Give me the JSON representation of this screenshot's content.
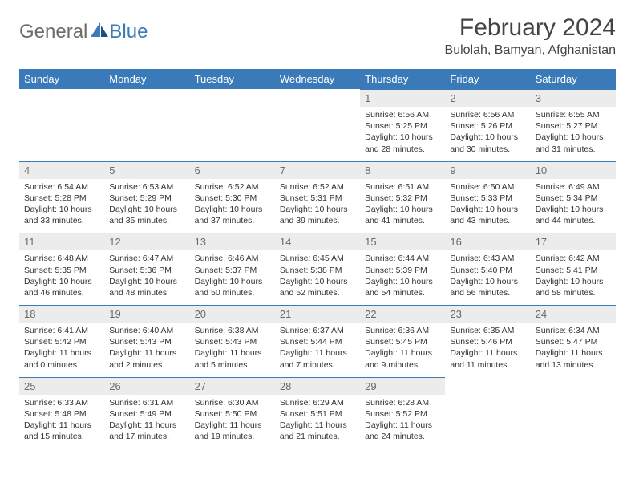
{
  "logo": {
    "textGray": "General",
    "textBlue": "Blue"
  },
  "title": "February 2024",
  "location": "Bulolah, Bamyan, Afghanistan",
  "colors": {
    "headerBar": "#3a7ab8",
    "dayNumBg": "#ececec",
    "logoGray": "#6b6b6b",
    "logoBlue": "#3a7ab8"
  },
  "weekdays": [
    "Sunday",
    "Monday",
    "Tuesday",
    "Wednesday",
    "Thursday",
    "Friday",
    "Saturday"
  ],
  "weeks": [
    [
      null,
      null,
      null,
      null,
      {
        "n": "1",
        "sr": "6:56 AM",
        "ss": "5:25 PM",
        "dl": "10 hours and 28 minutes."
      },
      {
        "n": "2",
        "sr": "6:56 AM",
        "ss": "5:26 PM",
        "dl": "10 hours and 30 minutes."
      },
      {
        "n": "3",
        "sr": "6:55 AM",
        "ss": "5:27 PM",
        "dl": "10 hours and 31 minutes."
      }
    ],
    [
      {
        "n": "4",
        "sr": "6:54 AM",
        "ss": "5:28 PM",
        "dl": "10 hours and 33 minutes."
      },
      {
        "n": "5",
        "sr": "6:53 AM",
        "ss": "5:29 PM",
        "dl": "10 hours and 35 minutes."
      },
      {
        "n": "6",
        "sr": "6:52 AM",
        "ss": "5:30 PM",
        "dl": "10 hours and 37 minutes."
      },
      {
        "n": "7",
        "sr": "6:52 AM",
        "ss": "5:31 PM",
        "dl": "10 hours and 39 minutes."
      },
      {
        "n": "8",
        "sr": "6:51 AM",
        "ss": "5:32 PM",
        "dl": "10 hours and 41 minutes."
      },
      {
        "n": "9",
        "sr": "6:50 AM",
        "ss": "5:33 PM",
        "dl": "10 hours and 43 minutes."
      },
      {
        "n": "10",
        "sr": "6:49 AM",
        "ss": "5:34 PM",
        "dl": "10 hours and 44 minutes."
      }
    ],
    [
      {
        "n": "11",
        "sr": "6:48 AM",
        "ss": "5:35 PM",
        "dl": "10 hours and 46 minutes."
      },
      {
        "n": "12",
        "sr": "6:47 AM",
        "ss": "5:36 PM",
        "dl": "10 hours and 48 minutes."
      },
      {
        "n": "13",
        "sr": "6:46 AM",
        "ss": "5:37 PM",
        "dl": "10 hours and 50 minutes."
      },
      {
        "n": "14",
        "sr": "6:45 AM",
        "ss": "5:38 PM",
        "dl": "10 hours and 52 minutes."
      },
      {
        "n": "15",
        "sr": "6:44 AM",
        "ss": "5:39 PM",
        "dl": "10 hours and 54 minutes."
      },
      {
        "n": "16",
        "sr": "6:43 AM",
        "ss": "5:40 PM",
        "dl": "10 hours and 56 minutes."
      },
      {
        "n": "17",
        "sr": "6:42 AM",
        "ss": "5:41 PM",
        "dl": "10 hours and 58 minutes."
      }
    ],
    [
      {
        "n": "18",
        "sr": "6:41 AM",
        "ss": "5:42 PM",
        "dl": "11 hours and 0 minutes."
      },
      {
        "n": "19",
        "sr": "6:40 AM",
        "ss": "5:43 PM",
        "dl": "11 hours and 2 minutes."
      },
      {
        "n": "20",
        "sr": "6:38 AM",
        "ss": "5:43 PM",
        "dl": "11 hours and 5 minutes."
      },
      {
        "n": "21",
        "sr": "6:37 AM",
        "ss": "5:44 PM",
        "dl": "11 hours and 7 minutes."
      },
      {
        "n": "22",
        "sr": "6:36 AM",
        "ss": "5:45 PM",
        "dl": "11 hours and 9 minutes."
      },
      {
        "n": "23",
        "sr": "6:35 AM",
        "ss": "5:46 PM",
        "dl": "11 hours and 11 minutes."
      },
      {
        "n": "24",
        "sr": "6:34 AM",
        "ss": "5:47 PM",
        "dl": "11 hours and 13 minutes."
      }
    ],
    [
      {
        "n": "25",
        "sr": "6:33 AM",
        "ss": "5:48 PM",
        "dl": "11 hours and 15 minutes."
      },
      {
        "n": "26",
        "sr": "6:31 AM",
        "ss": "5:49 PM",
        "dl": "11 hours and 17 minutes."
      },
      {
        "n": "27",
        "sr": "6:30 AM",
        "ss": "5:50 PM",
        "dl": "11 hours and 19 minutes."
      },
      {
        "n": "28",
        "sr": "6:29 AM",
        "ss": "5:51 PM",
        "dl": "11 hours and 21 minutes."
      },
      {
        "n": "29",
        "sr": "6:28 AM",
        "ss": "5:52 PM",
        "dl": "11 hours and 24 minutes."
      },
      null,
      null
    ]
  ],
  "labels": {
    "sunrise": "Sunrise:",
    "sunset": "Sunset:",
    "daylight": "Daylight:"
  }
}
